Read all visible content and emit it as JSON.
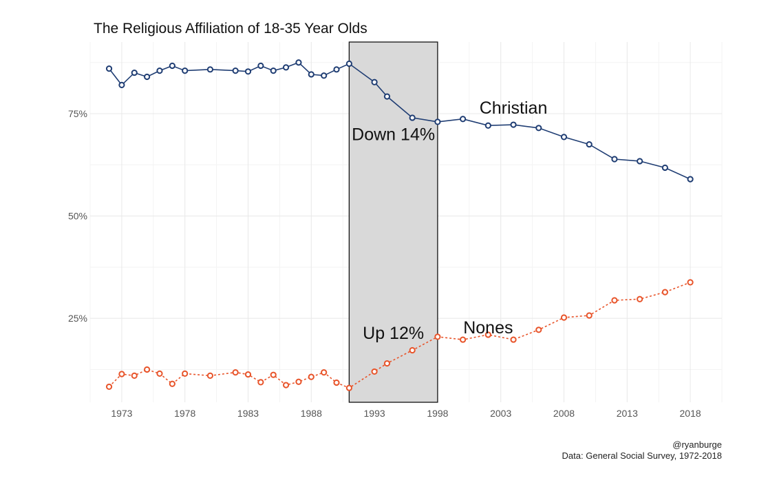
{
  "chart_data": {
    "type": "line",
    "title": "The Religious Affiliation of 18-35 Year Olds",
    "xlabel": "",
    "ylabel": "",
    "xlim": [
      1970.5,
      2020.5
    ],
    "ylim": [
      0.045,
      0.925
    ],
    "x_ticks": [
      1973,
      1978,
      1983,
      1988,
      1993,
      1998,
      2003,
      2008,
      2013,
      2018
    ],
    "y_ticks": [
      0.25,
      0.5,
      0.75
    ],
    "y_tick_labels": [
      "25%",
      "50%",
      "75%"
    ],
    "grid": true,
    "colors": {
      "christian": "#1f3d73",
      "nones": "#e8542a",
      "shade": "#d9d9d9"
    },
    "x": [
      1972,
      1973,
      1974,
      1975,
      1976,
      1977,
      1978,
      1980,
      1982,
      1983,
      1984,
      1985,
      1986,
      1987,
      1988,
      1989,
      1990,
      1991,
      1993,
      1994,
      1996,
      1998,
      2000,
      2002,
      2004,
      2006,
      2008,
      2010,
      2012,
      2014,
      2016,
      2018
    ],
    "series": [
      {
        "name": "Christian",
        "key": "christian",
        "style": "solid",
        "values": [
          0.86,
          0.82,
          0.85,
          0.84,
          0.855,
          0.867,
          0.855,
          0.858,
          0.855,
          0.853,
          0.867,
          0.855,
          0.863,
          0.875,
          0.846,
          0.843,
          0.858,
          0.872,
          0.827,
          0.792,
          0.74,
          0.73,
          0.737,
          0.721,
          0.723,
          0.715,
          0.693,
          0.675,
          0.639,
          0.634,
          0.618,
          0.59
        ]
      },
      {
        "name": "Nones",
        "key": "nones",
        "style": "dashed",
        "values": [
          0.083,
          0.114,
          0.11,
          0.125,
          0.115,
          0.09,
          0.115,
          0.11,
          0.118,
          0.113,
          0.094,
          0.112,
          0.087,
          0.095,
          0.107,
          0.118,
          0.093,
          0.08,
          0.12,
          0.14,
          0.172,
          0.205,
          0.198,
          0.21,
          0.198,
          0.222,
          0.252,
          0.257,
          0.294,
          0.297,
          0.314,
          0.338
        ]
      }
    ],
    "highlight_band": {
      "x_start": 1991,
      "x_end": 1998
    },
    "annotations": [
      {
        "name": "annotation-christian",
        "text": "Christian",
        "x": 2004,
        "y": 0.765
      },
      {
        "name": "annotation-down",
        "text": "Down 14%",
        "x": 1994.5,
        "y": 0.7
      },
      {
        "name": "annotation-up",
        "text": "Up 12%",
        "x": 1994.5,
        "y": 0.215
      },
      {
        "name": "annotation-nones",
        "text": "Nones",
        "x": 2002,
        "y": 0.228
      }
    ],
    "caption_lines": [
      "@ryanburge",
      "Data: General Social Survey, 1972-2018"
    ]
  }
}
